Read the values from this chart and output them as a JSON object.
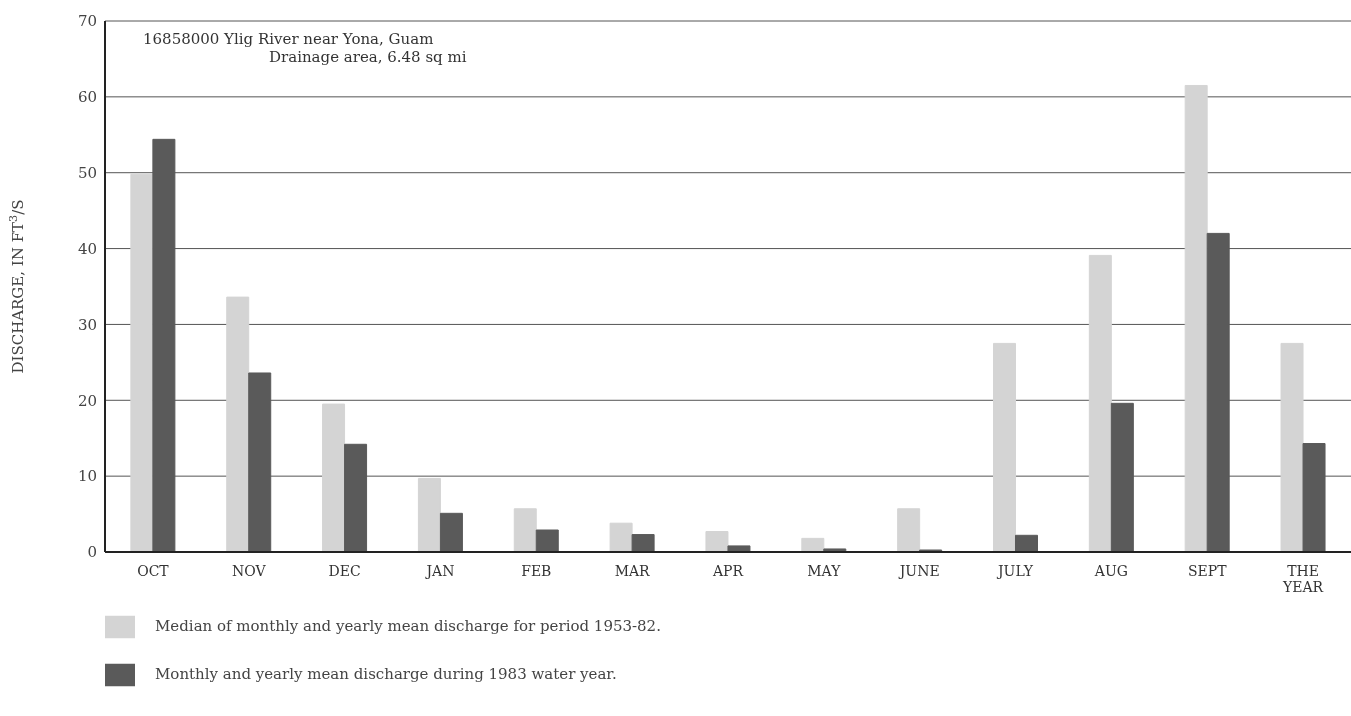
{
  "chart_data": {
    "type": "bar",
    "title": "16858000  Ylig River near Yona, Guam",
    "subtitle": "Drainage area, 6.48 sq mi",
    "ylabel": "DISCHARGE, IN FT$^{3}$/S",
    "categories": [
      "OCT",
      "NOV",
      "DEC",
      "JAN",
      "FEB",
      "MAR",
      "APR",
      "MAY",
      "JUNE",
      "JULY",
      "AUG",
      "SEPT",
      "THE YEAR"
    ],
    "series": [
      {
        "name": "Median of monthly and yearly mean discharge for period 1953-82.",
        "color": "#d4d4d4",
        "values": [
          49.8,
          33.6,
          19.5,
          9.7,
          5.7,
          3.8,
          2.7,
          1.8,
          5.7,
          27.5,
          39.1,
          61.5,
          27.5
        ]
      },
      {
        "name": "Monthly and yearly mean discharge during 1983 water year.",
        "color": "#5a5a5a",
        "values": [
          54.4,
          23.6,
          14.2,
          5.1,
          2.9,
          2.3,
          0.8,
          0.4,
          0.2,
          2.2,
          19.6,
          42.0,
          14.3
        ]
      }
    ],
    "ylim": [
      0,
      70
    ],
    "yticks": [
      0,
      10,
      20,
      30,
      40,
      50,
      60,
      70
    ],
    "grid": "y",
    "legend": "bottom"
  }
}
